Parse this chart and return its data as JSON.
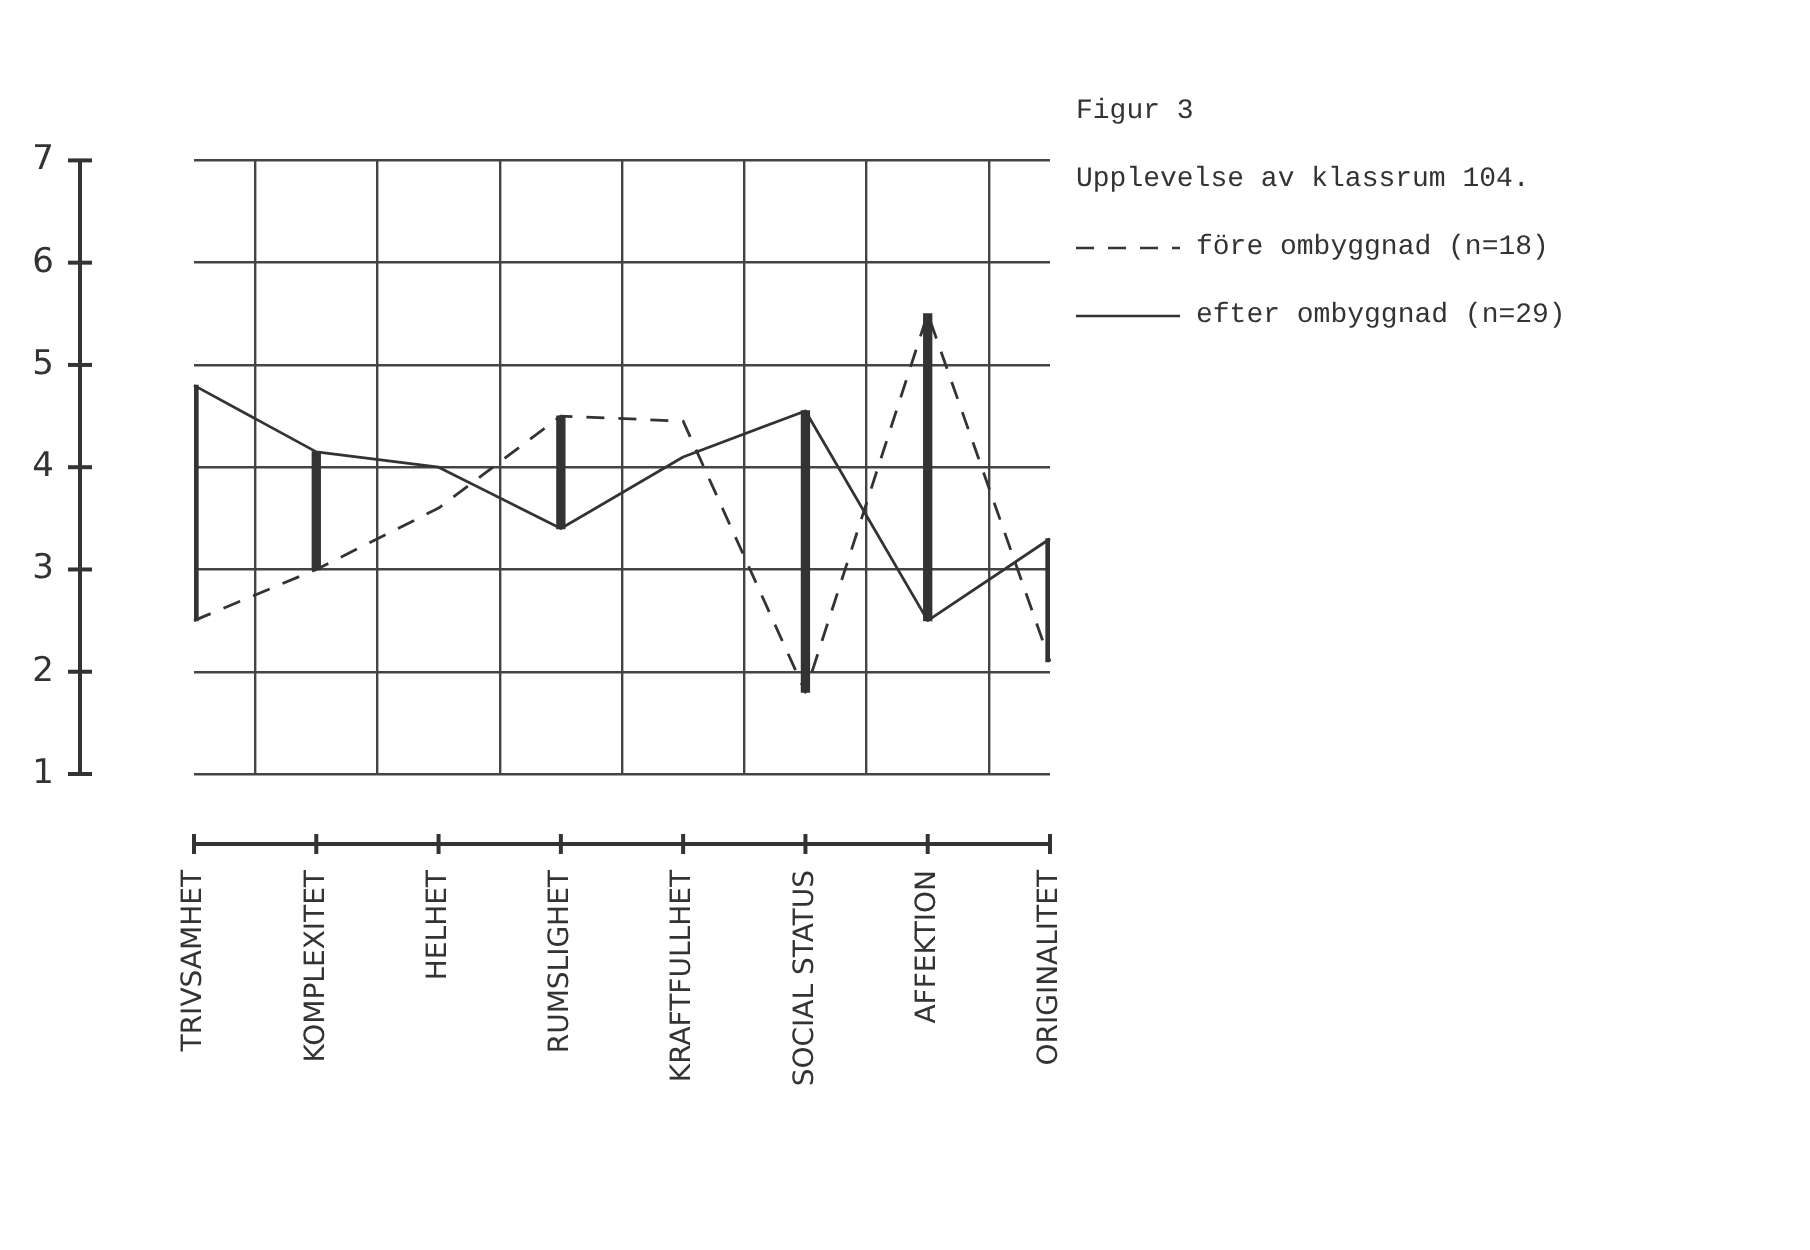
{
  "chart_data": {
    "type": "line",
    "title": "Figur 3",
    "subtitle": "Upplevelse av klassrum 104.",
    "categories": [
      "TRIVSAMHET",
      "KOMPLEXITET",
      "HELHET",
      "RUMSLIGHET",
      "KRAFTFULLHET",
      "SOCIAL STATUS",
      "AFFEKTION",
      "ORIGINALITET"
    ],
    "series": [
      {
        "name": "före ombyggnad (n=18)",
        "color": "#333333",
        "line_style": "dashed",
        "values": [
          2.5,
          3.0,
          3.6,
          4.5,
          4.45,
          1.8,
          5.5,
          2.1
        ]
      },
      {
        "name": "efter ombyggnad (n=29)",
        "color": "#333333",
        "line_style": "solid",
        "values": [
          4.8,
          4.15,
          4.0,
          3.4,
          4.1,
          4.55,
          2.5,
          3.3
        ]
      },
      {
        "type": "bar",
        "color": "#333333",
        "base": [
          2.5,
          3.0,
          null,
          3.4,
          null,
          1.8,
          2.5,
          2.1
        ],
        "values": [
          2.3,
          1.15,
          null,
          1.1,
          null,
          2.75,
          3.0,
          1.2
        ]
      }
    ],
    "ylim": [
      1,
      7
    ],
    "yticks": [
      1,
      2,
      3,
      4,
      5,
      6,
      7
    ],
    "grid": true,
    "legend": "right",
    "marker": "none"
  }
}
